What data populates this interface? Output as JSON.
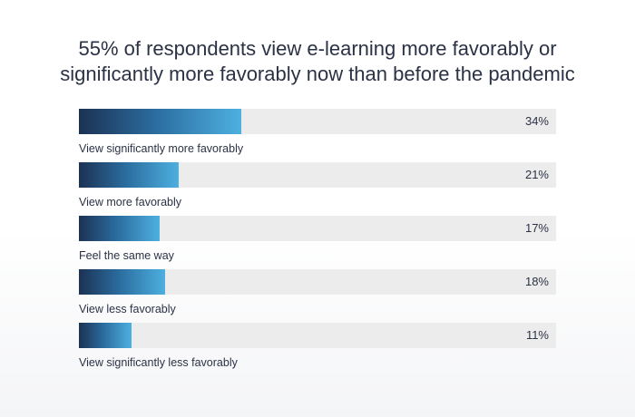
{
  "chart_data": {
    "type": "bar",
    "orientation": "horizontal",
    "title": "55% of respondents view e-learning more favorably or significantly more favorably now than before the pandemic",
    "title_lines": [
      "55% of respondents view e-learning more favorably or",
      "significantly more favorably now than before the pandemic"
    ],
    "categories": [
      "View significantly more favorably",
      "View more favorably",
      "Feel the same way",
      "View less favorably",
      "View significantly less favorably"
    ],
    "values": [
      34,
      21,
      17,
      18,
      11
    ],
    "value_labels": [
      "34%",
      "21%",
      "17%",
      "18%",
      "11%"
    ],
    "xlim": [
      0,
      100
    ],
    "grid": false,
    "colors": {
      "bar_start": "#1c3253",
      "bar_end": "#4db0e0",
      "track": "#ececec",
      "text": "#2b3245"
    }
  }
}
